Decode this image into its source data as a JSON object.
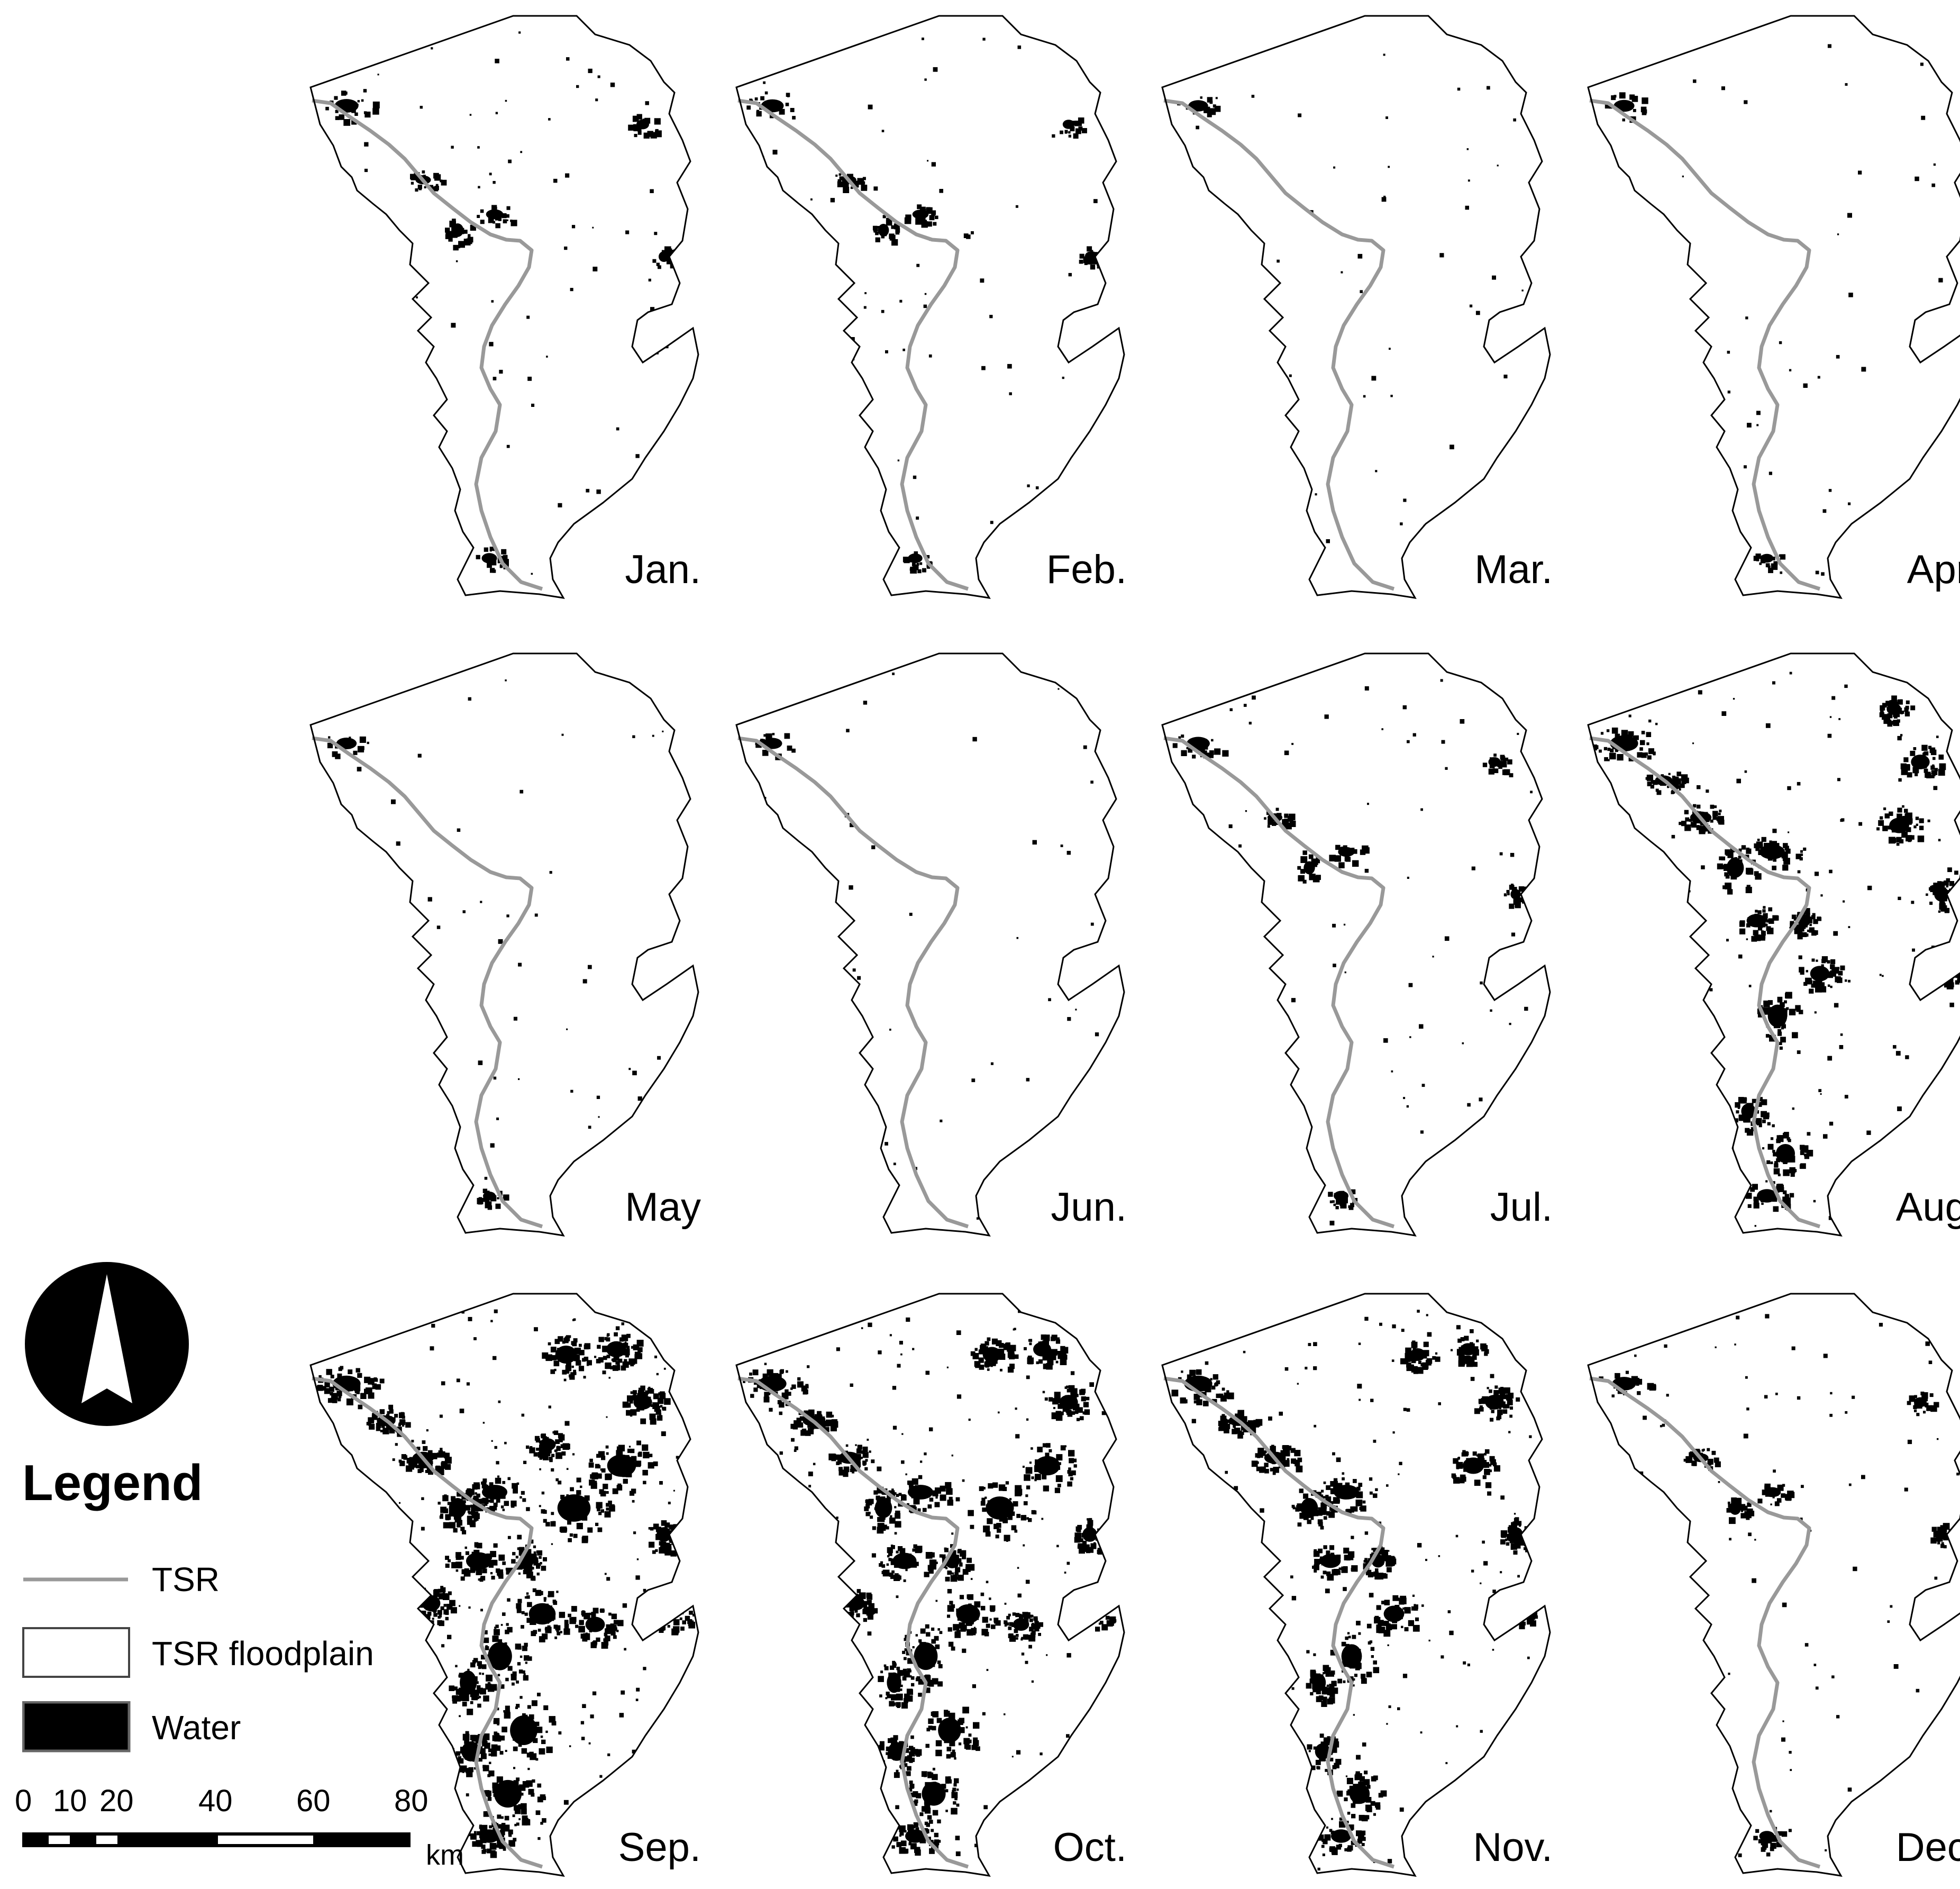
{
  "months": [
    "Jan.",
    "Feb.",
    "Mar.",
    "Apr.",
    "May",
    "Jun.",
    "Jul.",
    "Aug.",
    "Sep.",
    "Oct.",
    "Nov.",
    "Dec."
  ],
  "water_extent_level": [
    0.25,
    0.2,
    0.08,
    0.12,
    0.1,
    0.07,
    0.22,
    0.65,
    1.0,
    0.85,
    0.7,
    0.25
  ],
  "legend": {
    "title": "Legend",
    "items": [
      {
        "label": "TSR",
        "symbol": "gray-line",
        "color": "#999999"
      },
      {
        "label": "TSR  floodplain",
        "symbol": "white-box",
        "color": "#ffffff"
      },
      {
        "label": "Water",
        "symbol": "black-box",
        "color": "#000000"
      }
    ]
  },
  "scale_bar": {
    "ticks": [
      "0",
      "10",
      "20",
      "40",
      "60",
      "80"
    ],
    "tick_values": [
      0,
      10,
      20,
      40,
      60,
      80
    ],
    "unit": "km"
  },
  "north_arrow": {
    "icon": "north-arrow-icon"
  },
  "colors": {
    "river": "#999999",
    "water": "#000000",
    "floodplain": "#ffffff",
    "outline": "#000000"
  }
}
